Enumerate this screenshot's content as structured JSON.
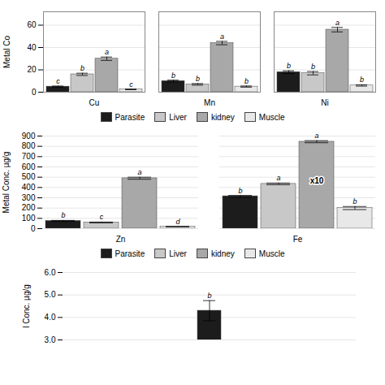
{
  "chart_data": [
    {
      "type": "bar",
      "ylabel": "Metal Co",
      "categories": [
        "Cu",
        "Mn",
        "Ni"
      ],
      "series": [
        {
          "name": "Parasite",
          "color": "#1c1c1c",
          "values": [
            5.0,
            10.0,
            18.0
          ],
          "errors": [
            0.5,
            0.8,
            1.2
          ],
          "labels": [
            "c",
            "b",
            "b"
          ]
        },
        {
          "name": "Liver",
          "color": "#c8c8c8",
          "values": [
            16.0,
            7.0,
            17.0
          ],
          "errors": [
            1.0,
            0.7,
            1.5
          ],
          "labels": [
            "b",
            "b",
            "b"
          ]
        },
        {
          "name": "kidney",
          "color": "#a8a8a8",
          "values": [
            30.0,
            44.0,
            56.0
          ],
          "errors": [
            1.5,
            1.5,
            2.0
          ],
          "labels": [
            "a",
            "a",
            "a"
          ]
        },
        {
          "name": "Muscle",
          "color": "#e8e8e8",
          "values": [
            2.5,
            5.0,
            6.0
          ],
          "errors": [
            0.3,
            0.5,
            0.6
          ],
          "labels": [
            "c",
            "b",
            "b"
          ]
        }
      ],
      "ylim": [
        0,
        72
      ],
      "yticks": [
        0,
        20,
        40,
        60
      ],
      "grid": true,
      "legend": "bottom"
    },
    {
      "type": "bar",
      "ylabel": "Metal Conc. µg/g",
      "categories": [
        "Zn",
        "Fe"
      ],
      "series": [
        {
          "name": "Parasite",
          "color": "#1c1c1c",
          "values": [
            75,
            315
          ],
          "errors": [
            5,
            8
          ],
          "labels": [
            "b",
            "b"
          ]
        },
        {
          "name": "Liver",
          "color": "#c8c8c8",
          "values": [
            60,
            435
          ],
          "errors": [
            4,
            8
          ],
          "labels": [
            "c",
            "a"
          ]
        },
        {
          "name": "kidney",
          "color": "#a8a8a8",
          "values": [
            490,
            845
          ],
          "errors": [
            10,
            10
          ],
          "labels": [
            "a",
            "a"
          ]
        },
        {
          "name": "Muscle",
          "color": "#e8e8e8",
          "values": [
            20,
            200
          ],
          "errors": [
            2,
            15
          ],
          "labels": [
            "d",
            "b"
          ]
        }
      ],
      "annotations": [
        {
          "text": "x10",
          "category": "Fe",
          "series": "kidney",
          "y": 460
        }
      ],
      "ylim": [
        0,
        900
      ],
      "yticks": [
        0,
        100,
        200,
        300,
        400,
        500,
        600,
        700,
        800,
        900
      ],
      "grid": true,
      "legend": "bottom"
    },
    {
      "type": "bar",
      "ylabel": "l Conc. µg/g",
      "categories": [
        null
      ],
      "series": [
        {
          "name": "Parasite",
          "color": "#1c1c1c",
          "values": [
            4.3
          ],
          "errors": [
            0.45
          ],
          "labels": [
            "b"
          ]
        }
      ],
      "ylim": [
        3,
        6
      ],
      "yticks": [
        3,
        4,
        5,
        6
      ],
      "grid": true,
      "tick_labels": "y"
    }
  ]
}
